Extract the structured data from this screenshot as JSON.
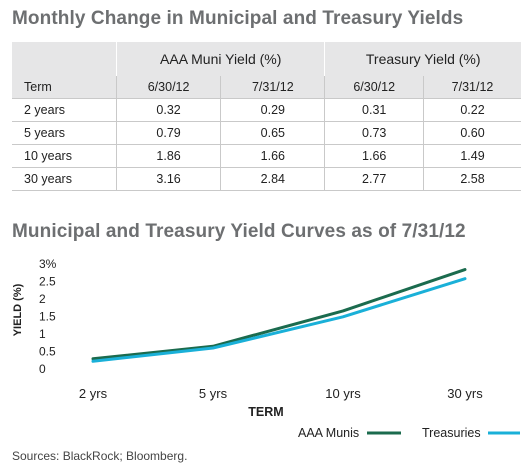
{
  "tables": {
    "title": "Monthly Change in Municipal and Treasury Yields",
    "group_headers": [
      "AAA Muni Yield (%)",
      "Treasury Yield (%)"
    ],
    "columns": [
      "Term",
      "6/30/12",
      "7/31/12",
      "6/30/12",
      "7/31/12"
    ],
    "rows": [
      [
        "2 years",
        "0.32",
        "0.29",
        "0.31",
        "0.22"
      ],
      [
        "5 years",
        "0.79",
        "0.65",
        "0.73",
        "0.60"
      ],
      [
        "10 years",
        "1.86",
        "1.66",
        "1.66",
        "1.49"
      ],
      [
        "30 years",
        "3.16",
        "2.84",
        "2.77",
        "2.58"
      ]
    ]
  },
  "chart_data": {
    "type": "line",
    "title": "Municipal and Treasury Yield Curves as of 7/31/12",
    "categories": [
      "2 yrs",
      "5 yrs",
      "10 yrs",
      "30 yrs"
    ],
    "series": [
      {
        "name": "AAA Munis",
        "values": [
          0.29,
          0.65,
          1.66,
          2.84
        ],
        "color": "#1b6b4e"
      },
      {
        "name": "Treasuries",
        "values": [
          0.22,
          0.6,
          1.49,
          2.58
        ],
        "color": "#1ab0d8"
      }
    ],
    "xlabel": "TERM",
    "ylabel": "YIELD (%)",
    "y_ticks": [
      "0",
      "0.5",
      "1",
      "1.5",
      "2",
      "2.5",
      "3%"
    ],
    "ylim": [
      0,
      3
    ],
    "grid": false,
    "legend_position": "bottom-right"
  },
  "source": "Sources: BlackRock; Bloomberg."
}
